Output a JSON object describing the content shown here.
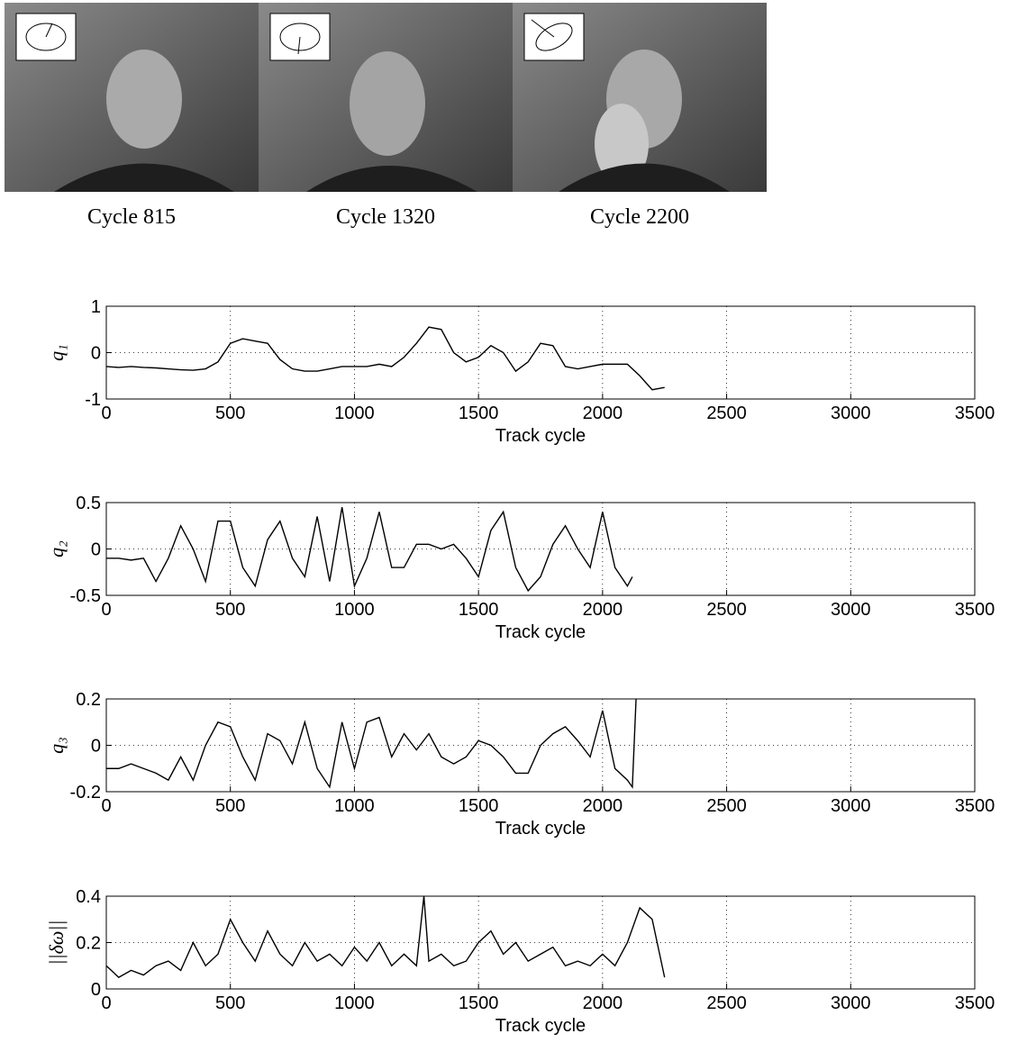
{
  "images": [
    {
      "caption": "Cycle 815"
    },
    {
      "caption": "Cycle 1320"
    },
    {
      "caption": "Cycle 2200"
    }
  ],
  "chart_data": [
    {
      "type": "line",
      "ylabel": "q₁",
      "xlabel": "Track cycle",
      "xlim": [
        0,
        3500
      ],
      "xticks": [
        0,
        500,
        1000,
        1500,
        2000,
        2500,
        3000,
        3500
      ],
      "ylim": [
        -1,
        1
      ],
      "yticks": [
        -1,
        0,
        1
      ],
      "grid": true,
      "x": [
        0,
        50,
        100,
        150,
        200,
        250,
        300,
        350,
        400,
        450,
        500,
        550,
        600,
        650,
        700,
        750,
        800,
        850,
        900,
        950,
        1000,
        1050,
        1100,
        1150,
        1200,
        1250,
        1300,
        1350,
        1400,
        1450,
        1500,
        1550,
        1600,
        1650,
        1700,
        1750,
        1800,
        1850,
        1900,
        1950,
        2000,
        2050,
        2100,
        2150,
        2200,
        2250
      ],
      "series": [
        {
          "color": "#000000",
          "values": [
            -0.3,
            -0.32,
            -0.3,
            -0.32,
            -0.33,
            -0.35,
            -0.37,
            -0.38,
            -0.35,
            -0.2,
            0.2,
            0.3,
            0.25,
            0.2,
            -0.15,
            -0.35,
            -0.4,
            -0.4,
            -0.35,
            -0.3,
            -0.3,
            -0.3,
            -0.25,
            -0.3,
            -0.1,
            0.2,
            0.55,
            0.5,
            0.0,
            -0.2,
            -0.1,
            0.15,
            0.0,
            -0.4,
            -0.2,
            0.2,
            0.15,
            -0.3,
            -0.35,
            -0.3,
            -0.25,
            -0.25,
            -0.25,
            -0.5,
            -0.8,
            -0.75
          ]
        }
      ]
    },
    {
      "type": "line",
      "ylabel": "q₂",
      "xlabel": "Track cycle",
      "xlim": [
        0,
        3500
      ],
      "xticks": [
        0,
        500,
        1000,
        1500,
        2000,
        2500,
        3000,
        3500
      ],
      "ylim": [
        -0.5,
        0.5
      ],
      "yticks": [
        -0.5,
        0,
        0.5
      ],
      "grid": true,
      "x": [
        0,
        50,
        100,
        150,
        200,
        250,
        300,
        350,
        400,
        450,
        500,
        550,
        600,
        650,
        700,
        750,
        800,
        850,
        900,
        950,
        1000,
        1050,
        1100,
        1150,
        1200,
        1250,
        1300,
        1350,
        1400,
        1450,
        1500,
        1550,
        1600,
        1650,
        1700,
        1750,
        1800,
        1850,
        1900,
        1950,
        2000,
        2050,
        2100,
        2120
      ],
      "series": [
        {
          "color": "#000000",
          "values": [
            -0.1,
            -0.1,
            -0.12,
            -0.1,
            -0.35,
            -0.1,
            0.25,
            0.0,
            -0.35,
            0.3,
            0.3,
            -0.2,
            -0.4,
            0.1,
            0.3,
            -0.1,
            -0.3,
            0.35,
            -0.35,
            0.45,
            -0.4,
            -0.1,
            0.4,
            -0.2,
            -0.2,
            0.05,
            0.05,
            0.0,
            0.05,
            -0.1,
            -0.3,
            0.2,
            0.4,
            -0.2,
            -0.45,
            -0.3,
            0.05,
            0.25,
            0.0,
            -0.2,
            0.4,
            -0.2,
            -0.4,
            -0.3
          ]
        }
      ]
    },
    {
      "type": "line",
      "ylabel": "q₃",
      "xlabel": "Track cycle",
      "xlim": [
        0,
        3500
      ],
      "xticks": [
        0,
        500,
        1000,
        1500,
        2000,
        2500,
        3000,
        3500
      ],
      "ylim": [
        -0.2,
        0.2
      ],
      "yticks": [
        -0.2,
        0,
        0.2
      ],
      "grid": true,
      "x": [
        0,
        50,
        100,
        150,
        200,
        250,
        300,
        350,
        400,
        450,
        500,
        550,
        600,
        650,
        700,
        750,
        800,
        850,
        900,
        950,
        1000,
        1050,
        1100,
        1150,
        1200,
        1250,
        1300,
        1350,
        1400,
        1450,
        1500,
        1550,
        1600,
        1650,
        1700,
        1750,
        1800,
        1850,
        1900,
        1950,
        2000,
        2050,
        2100,
        2120,
        2135
      ],
      "series": [
        {
          "color": "#000000",
          "values": [
            -0.1,
            -0.1,
            -0.08,
            -0.1,
            -0.12,
            -0.15,
            -0.05,
            -0.15,
            0.0,
            0.1,
            0.08,
            -0.05,
            -0.15,
            0.05,
            0.02,
            -0.08,
            0.1,
            -0.1,
            -0.18,
            0.1,
            -0.1,
            0.1,
            0.12,
            -0.05,
            0.05,
            -0.02,
            0.05,
            -0.05,
            -0.08,
            -0.05,
            0.02,
            0.0,
            -0.05,
            -0.12,
            -0.12,
            0.0,
            0.05,
            0.08,
            0.02,
            -0.05,
            0.15,
            -0.1,
            -0.15,
            -0.18,
            0.2
          ]
        }
      ]
    },
    {
      "type": "line",
      "ylabel": "||δω||",
      "xlabel": "Track cycle",
      "xlim": [
        0,
        3500
      ],
      "xticks": [
        0,
        500,
        1000,
        1500,
        2000,
        2500,
        3000,
        3500
      ],
      "ylim": [
        0,
        0.4
      ],
      "yticks": [
        0,
        0.2,
        0.4
      ],
      "grid": true,
      "x": [
        0,
        50,
        100,
        150,
        200,
        250,
        300,
        350,
        400,
        450,
        500,
        550,
        600,
        650,
        700,
        750,
        800,
        850,
        900,
        950,
        1000,
        1050,
        1100,
        1150,
        1200,
        1250,
        1280,
        1300,
        1350,
        1400,
        1450,
        1500,
        1550,
        1600,
        1650,
        1700,
        1750,
        1800,
        1850,
        1900,
        1950,
        2000,
        2050,
        2100,
        2150,
        2200,
        2250
      ],
      "series": [
        {
          "color": "#000000",
          "values": [
            0.1,
            0.05,
            0.08,
            0.06,
            0.1,
            0.12,
            0.08,
            0.2,
            0.1,
            0.15,
            0.3,
            0.2,
            0.12,
            0.25,
            0.15,
            0.1,
            0.2,
            0.12,
            0.15,
            0.1,
            0.18,
            0.12,
            0.2,
            0.1,
            0.15,
            0.1,
            0.4,
            0.12,
            0.15,
            0.1,
            0.12,
            0.2,
            0.25,
            0.15,
            0.2,
            0.12,
            0.15,
            0.18,
            0.1,
            0.12,
            0.1,
            0.15,
            0.1,
            0.2,
            0.35,
            0.3,
            0.05
          ]
        }
      ]
    }
  ]
}
